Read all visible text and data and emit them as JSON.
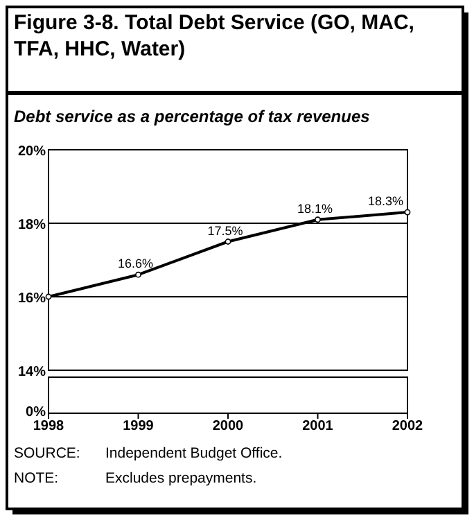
{
  "chart_data": {
    "type": "line",
    "title": "Figure 3-8. Total Debt Service (GO, MAC, TFA, HHC, Water)",
    "subtitle": "Debt service as a percentage of tax revenues",
    "categories": [
      "1998",
      "1999",
      "2000",
      "2001",
      "2002"
    ],
    "series": [
      {
        "color": "#000000",
        "values": [
          16.0,
          16.6,
          17.5,
          18.1,
          18.3
        ],
        "value_labels": [
          null,
          "16.6%",
          "17.5%",
          "18.1%",
          "18.3%"
        ]
      }
    ],
    "ylim": [
      14,
      20
    ],
    "yticks": [
      {
        "value": 14,
        "label": "14%"
      },
      {
        "value": 16,
        "label": "16%"
      },
      {
        "value": 18,
        "label": "18%"
      },
      {
        "value": 20,
        "label": "20%"
      }
    ],
    "grid": "y",
    "marker": "circle",
    "line_style": "solid",
    "annotations": [
      "0%",
      "SOURCE:   Independent Budget Office.",
      "NOTE:   Excludes prepayments."
    ]
  }
}
